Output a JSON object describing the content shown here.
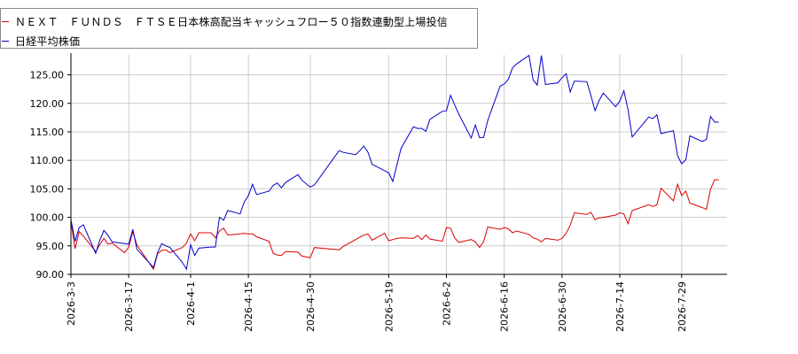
{
  "chart_data": {
    "type": "line",
    "x_start": "2026-03-03",
    "x_end": "2026-08-09",
    "xticks": [
      "2026-3-3",
      "2026-3-17",
      "2026-4-1",
      "2026-4-15",
      "2026-4-30",
      "2026-5-19",
      "2026-6-2",
      "2026-6-16",
      "2026-6-30",
      "2026-7-14",
      "2026-7-29"
    ],
    "xtick_dates": [
      "2026-03-03",
      "2026-03-17",
      "2026-04-01",
      "2026-04-15",
      "2026-04-30",
      "2026-05-19",
      "2026-06-02",
      "2026-06-16",
      "2026-06-30",
      "2026-07-14",
      "2026-07-29"
    ],
    "yticks": [
      "90.00",
      "95.00",
      "100.00",
      "105.00",
      "110.00",
      "115.00",
      "120.00",
      "125.00"
    ],
    "ylim": [
      90,
      128.5
    ],
    "grid": true,
    "legend_position": "top-left",
    "series": [
      {
        "name": "ＮＥＸＴ　ＦＵＮＤＳ　ＦＴＳＥ日本株高配当キャッシュフロー５０指数連動型上場投信",
        "color": "#dd0000",
        "x": [
          "2026-03-03",
          "2026-03-04",
          "2026-03-05",
          "2026-03-06",
          "2026-03-09",
          "2026-03-10",
          "2026-03-11",
          "2026-03-12",
          "2026-03-13",
          "2026-03-16",
          "2026-03-17",
          "2026-03-18",
          "2026-03-19",
          "2026-03-23",
          "2026-03-24",
          "2026-03-25",
          "2026-03-26",
          "2026-03-27",
          "2026-03-30",
          "2026-03-31",
          "2026-04-01",
          "2026-04-02",
          "2026-04-03",
          "2026-04-06",
          "2026-04-07",
          "2026-04-08",
          "2026-04-09",
          "2026-04-10",
          "2026-04-13",
          "2026-04-14",
          "2026-04-15",
          "2026-04-16",
          "2026-04-17",
          "2026-04-20",
          "2026-04-21",
          "2026-04-22",
          "2026-04-23",
          "2026-04-24",
          "2026-04-27",
          "2026-04-28",
          "2026-04-30",
          "2026-05-01",
          "2026-05-07",
          "2026-05-08",
          "2026-05-11",
          "2026-05-12",
          "2026-05-13",
          "2026-05-14",
          "2026-05-15",
          "2026-05-18",
          "2026-05-19",
          "2026-05-20",
          "2026-05-21",
          "2026-05-22",
          "2026-05-25",
          "2026-05-26",
          "2026-05-27",
          "2026-05-28",
          "2026-05-29",
          "2026-06-01",
          "2026-06-02",
          "2026-06-03",
          "2026-06-04",
          "2026-06-05",
          "2026-06-08",
          "2026-06-09",
          "2026-06-10",
          "2026-06-11",
          "2026-06-12",
          "2026-06-15",
          "2026-06-16",
          "2026-06-17",
          "2026-06-18",
          "2026-06-19",
          "2026-06-22",
          "2026-06-23",
          "2026-06-24",
          "2026-06-25",
          "2026-06-26",
          "2026-06-29",
          "2026-06-30",
          "2026-07-01",
          "2026-07-02",
          "2026-07-03",
          "2026-07-06",
          "2026-07-07",
          "2026-07-08",
          "2026-07-09",
          "2026-07-10",
          "2026-07-13",
          "2026-07-14",
          "2026-07-15",
          "2026-07-16",
          "2026-07-17",
          "2026-07-21",
          "2026-07-22",
          "2026-07-23",
          "2026-07-24",
          "2026-07-27",
          "2026-07-28",
          "2026-07-29",
          "2026-07-30",
          "2026-07-31",
          "2026-08-03",
          "2026-08-04",
          "2026-08-05",
          "2026-08-06",
          "2026-08-07"
        ],
        "values": [
          99.2,
          94.5,
          97.5,
          96.7,
          94.0,
          95.2,
          96.3,
          95.3,
          95.5,
          93.8,
          94.8,
          97.5,
          95.1,
          90.9,
          93.6,
          94.2,
          94.3,
          93.8,
          94.7,
          95.5,
          97.1,
          95.9,
          97.3,
          97.3,
          96.4,
          97.6,
          98.1,
          96.9,
          97.1,
          97.2,
          97.1,
          97.1,
          96.6,
          95.8,
          93.7,
          93.4,
          93.3,
          94.0,
          93.9,
          93.2,
          92.9,
          94.7,
          94.3,
          94.9,
          96.1,
          96.5,
          96.9,
          97.1,
          96.0,
          97.2,
          95.9,
          96.1,
          96.3,
          96.4,
          96.3,
          96.8,
          96.1,
          96.9,
          96.2,
          95.8,
          98.2,
          98.1,
          96.4,
          95.6,
          96.1,
          95.7,
          94.7,
          95.7,
          98.3,
          97.9,
          98.2,
          98.0,
          97.3,
          97.6,
          97.0,
          96.4,
          96.2,
          95.7,
          96.3,
          96.0,
          96.3,
          97.2,
          98.6,
          100.8,
          100.5,
          100.9,
          99.6,
          99.9,
          100.0,
          100.4,
          100.8,
          100.6,
          98.9,
          101.2,
          102.2,
          101.9,
          102.2,
          105.1,
          102.9,
          105.8,
          103.8,
          104.6,
          102.5,
          101.7,
          101.4,
          105.0,
          106.6,
          106.6
        ]
      },
      {
        "name": "日経平均株価",
        "color": "#0000cc",
        "x": [
          "2026-03-03",
          "2026-03-04",
          "2026-03-05",
          "2026-03-06",
          "2026-03-09",
          "2026-03-10",
          "2026-03-11",
          "2026-03-12",
          "2026-03-13",
          "2026-03-16",
          "2026-03-17",
          "2026-03-18",
          "2026-03-19",
          "2026-03-23",
          "2026-03-24",
          "2026-03-25",
          "2026-03-26",
          "2026-03-27",
          "2026-03-30",
          "2026-03-31",
          "2026-04-01",
          "2026-04-02",
          "2026-04-03",
          "2026-04-06",
          "2026-04-07",
          "2026-04-08",
          "2026-04-09",
          "2026-04-10",
          "2026-04-13",
          "2026-04-14",
          "2026-04-15",
          "2026-04-16",
          "2026-04-17",
          "2026-04-20",
          "2026-04-21",
          "2026-04-22",
          "2026-04-23",
          "2026-04-24",
          "2026-04-27",
          "2026-04-28",
          "2026-04-30",
          "2026-05-01",
          "2026-05-07",
          "2026-05-08",
          "2026-05-11",
          "2026-05-12",
          "2026-05-13",
          "2026-05-14",
          "2026-05-15",
          "2026-05-18",
          "2026-05-19",
          "2026-05-20",
          "2026-05-21",
          "2026-05-22",
          "2026-05-25",
          "2026-05-26",
          "2026-05-27",
          "2026-05-28",
          "2026-05-29",
          "2026-06-01",
          "2026-06-02",
          "2026-06-03",
          "2026-06-04",
          "2026-06-05",
          "2026-06-08",
          "2026-06-09",
          "2026-06-10",
          "2026-06-11",
          "2026-06-12",
          "2026-06-15",
          "2026-06-16",
          "2026-06-17",
          "2026-06-18",
          "2026-06-19",
          "2026-06-22",
          "2026-06-23",
          "2026-06-24",
          "2026-06-25",
          "2026-06-26",
          "2026-06-29",
          "2026-06-30",
          "2026-07-01",
          "2026-07-02",
          "2026-07-03",
          "2026-07-06",
          "2026-07-07",
          "2026-07-08",
          "2026-07-09",
          "2026-07-10",
          "2026-07-13",
          "2026-07-14",
          "2026-07-15",
          "2026-07-16",
          "2026-07-17",
          "2026-07-21",
          "2026-07-22",
          "2026-07-23",
          "2026-07-24",
          "2026-07-27",
          "2026-07-28",
          "2026-07-29",
          "2026-07-30",
          "2026-07-31",
          "2026-08-03",
          "2026-08-04",
          "2026-08-05",
          "2026-08-06",
          "2026-08-07"
        ],
        "values": [
          99.6,
          95.8,
          98.2,
          98.7,
          93.7,
          96.0,
          97.7,
          96.8,
          95.7,
          95.4,
          95.3,
          97.9,
          94.4,
          91.2,
          93.8,
          95.4,
          95.0,
          94.7,
          92.1,
          90.9,
          95.2,
          93.3,
          94.6,
          94.8,
          94.8,
          100.0,
          99.5,
          101.2,
          100.6,
          102.7,
          103.8,
          105.8,
          104.0,
          104.6,
          105.6,
          106.0,
          105.2,
          106.1,
          107.5,
          106.5,
          105.3,
          105.7,
          111.7,
          111.4,
          111.0,
          111.7,
          112.5,
          111.4,
          109.3,
          108.2,
          107.8,
          106.3,
          109.2,
          112.1,
          115.9,
          115.6,
          115.6,
          115.1,
          117.2,
          118.6,
          118.7,
          121.4,
          119.7,
          118.1,
          113.9,
          116.2,
          114.0,
          114.0,
          117.0,
          123.0,
          123.4,
          124.2,
          126.2,
          126.9,
          128.4,
          124.1,
          123.2,
          128.4,
          123.3,
          123.6,
          124.5,
          125.2,
          122.0,
          123.9,
          123.8,
          121.4,
          118.7,
          120.5,
          121.8,
          119.4,
          120.4,
          122.2,
          118.9,
          114.1,
          117.6,
          117.3,
          118.0,
          114.7,
          115.2,
          110.8,
          109.4,
          110.1,
          114.3,
          113.3,
          113.7,
          117.7,
          116.7,
          116.7
        ]
      }
    ]
  }
}
